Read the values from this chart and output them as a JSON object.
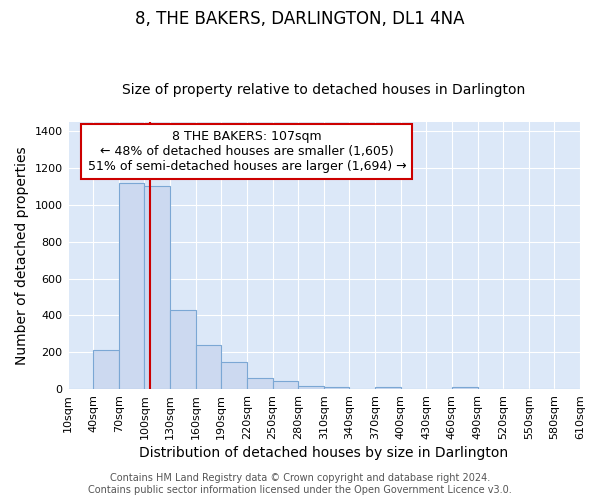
{
  "title": "8, THE BAKERS, DARLINGTON, DL1 4NA",
  "subtitle": "Size of property relative to detached houses in Darlington",
  "xlabel": "Distribution of detached houses by size in Darlington",
  "ylabel": "Number of detached properties",
  "bin_edges": [
    10,
    40,
    70,
    100,
    130,
    160,
    190,
    220,
    250,
    280,
    310,
    340,
    370,
    400,
    430,
    460,
    490,
    520,
    550,
    580,
    610
  ],
  "bar_heights": [
    0,
    210,
    1120,
    1100,
    430,
    240,
    145,
    60,
    45,
    20,
    10,
    0,
    10,
    0,
    0,
    10,
    0,
    0,
    0,
    0
  ],
  "bar_color": "#ccd9f0",
  "bar_edge_color": "#7ba7d4",
  "bar_edge_width": 0.8,
  "red_line_x": 107,
  "red_line_color": "#cc0000",
  "ylim": [
    0,
    1450
  ],
  "yticks": [
    0,
    200,
    400,
    600,
    800,
    1000,
    1200,
    1400
  ],
  "xtick_labels": [
    "10sqm",
    "40sqm",
    "70sqm",
    "100sqm",
    "130sqm",
    "160sqm",
    "190sqm",
    "220sqm",
    "250sqm",
    "280sqm",
    "310sqm",
    "340sqm",
    "370sqm",
    "400sqm",
    "430sqm",
    "460sqm",
    "490sqm",
    "520sqm",
    "550sqm",
    "580sqm",
    "610sqm"
  ],
  "annotation_text": "8 THE BAKERS: 107sqm\n← 48% of detached houses are smaller (1,605)\n51% of semi-detached houses are larger (1,694) →",
  "annotation_box_color": "#ffffff",
  "annotation_box_edge_color": "#cc0000",
  "footer_line1": "Contains HM Land Registry data © Crown copyright and database right 2024.",
  "footer_line2": "Contains public sector information licensed under the Open Government Licence v3.0.",
  "fig_background_color": "#ffffff",
  "plot_background_color": "#dce8f8",
  "grid_color": "#ffffff",
  "title_fontsize": 12,
  "subtitle_fontsize": 10,
  "axis_label_fontsize": 10,
  "tick_fontsize": 8,
  "annotation_fontsize": 9,
  "footer_fontsize": 7
}
